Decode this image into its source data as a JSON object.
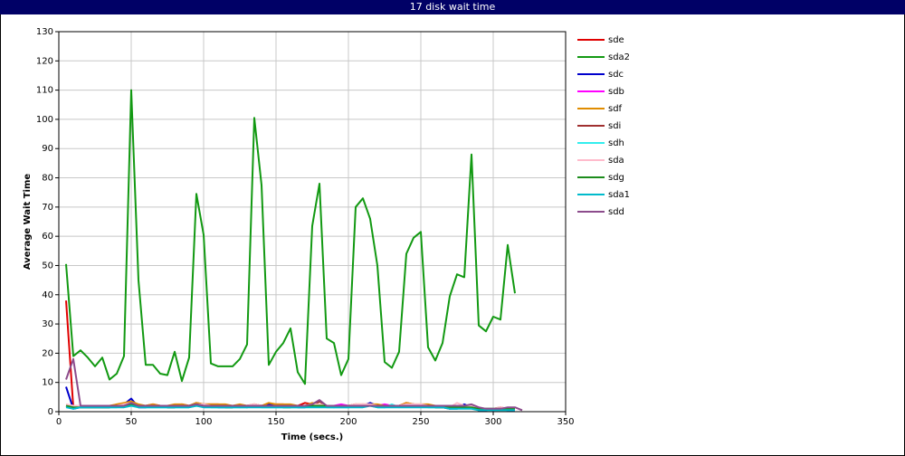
{
  "chart_data": {
    "type": "line",
    "title": "17 disk wait time",
    "x_label": "Time (secs.)",
    "y_label": "Average Wait Time",
    "xlim": [
      0,
      350
    ],
    "xticks": [
      0,
      50,
      100,
      150,
      200,
      250,
      300,
      350
    ],
    "ylim": [
      0,
      130
    ],
    "yticks": [
      0,
      10,
      20,
      30,
      40,
      50,
      60,
      70,
      80,
      90,
      100,
      110,
      120,
      130
    ],
    "grid": true,
    "legend": "right",
    "x": [
      5,
      10,
      15,
      20,
      25,
      30,
      35,
      40,
      45,
      50,
      55,
      60,
      65,
      70,
      75,
      80,
      85,
      90,
      95,
      100,
      105,
      110,
      115,
      120,
      125,
      130,
      135,
      140,
      145,
      150,
      155,
      160,
      165,
      170,
      175,
      180,
      185,
      190,
      195,
      200,
      205,
      210,
      215,
      220,
      225,
      230,
      235,
      240,
      245,
      250,
      255,
      260,
      265,
      270,
      275,
      280,
      285,
      290,
      295,
      300,
      305,
      310,
      315,
      320
    ],
    "series": [
      {
        "name": "sde",
        "color": "#e00000",
        "values": [
          38,
          1.5,
          2,
          2,
          2,
          1.5,
          1.5,
          2,
          2.5,
          3.5,
          2,
          2,
          2.5,
          2,
          2,
          2,
          2.5,
          2,
          3,
          2.5,
          2.5,
          2.5,
          2,
          2,
          2,
          2,
          2.5,
          2,
          2,
          2.5,
          2.5,
          2,
          2,
          3,
          2.5,
          2,
          2,
          2,
          2,
          2,
          2.5,
          2,
          2.5,
          2,
          2,
          2,
          2,
          3,
          2.5,
          2,
          2,
          2,
          1.5,
          1,
          1.5,
          2,
          1.5,
          0.5,
          0.5,
          1,
          1.5,
          1,
          1,
          null
        ]
      },
      {
        "name": "sda2",
        "color": "#129912",
        "values": [
          50.5,
          19,
          21,
          18.5,
          15.5,
          18.5,
          11,
          13,
          19,
          110,
          45,
          16,
          16,
          13,
          12.5,
          20.5,
          10.5,
          18.5,
          74.5,
          60.5,
          16.5,
          15.5,
          15.5,
          15.5,
          18,
          23,
          100.5,
          77.5,
          16,
          20.5,
          23.5,
          28.5,
          13.5,
          9.5,
          63.5,
          78,
          25,
          23.5,
          12.5,
          18,
          70,
          73,
          66,
          50,
          17,
          15,
          20.5,
          54,
          59.5,
          61.5,
          22,
          17.5,
          23.5,
          39.5,
          47,
          46,
          88,
          29.5,
          27.5,
          32.5,
          31.5,
          57,
          40.5,
          null
        ]
      },
      {
        "name": "sdc",
        "color": "#0000cc",
        "values": [
          8.5,
          1,
          1.5,
          1.5,
          1.5,
          1.5,
          1.5,
          2,
          2.5,
          4.5,
          1.5,
          1.5,
          2,
          2,
          1.5,
          1.5,
          2,
          2,
          2.5,
          2,
          2,
          1.5,
          1.5,
          1.5,
          2,
          1.5,
          2,
          2,
          2.5,
          2,
          1.5,
          2,
          1.5,
          1.5,
          2.5,
          2,
          2,
          1.5,
          2,
          1.5,
          2,
          2,
          3,
          2,
          1.5,
          2,
          2,
          2,
          2.5,
          2,
          2,
          1.5,
          1.5,
          1,
          1,
          2.5,
          1.5,
          0.5,
          0.5,
          1,
          1,
          0.5,
          0.5,
          null
        ]
      },
      {
        "name": "sdb",
        "color": "#ff00ff",
        "values": [
          2,
          1.5,
          1.5,
          2,
          1.5,
          2,
          1.5,
          2,
          2,
          2.5,
          2,
          1.5,
          2,
          2,
          1.5,
          2,
          2,
          2,
          2.5,
          2,
          2,
          2,
          1.5,
          2,
          1.5,
          2,
          2,
          2,
          2,
          2,
          2,
          2,
          2,
          2,
          2,
          2,
          2,
          2,
          2.5,
          2,
          2,
          2.5,
          2,
          2,
          2.5,
          2,
          2,
          2.5,
          2,
          2,
          2,
          2,
          1.5,
          1.5,
          1.5,
          2,
          1.5,
          1,
          1,
          0.5,
          1,
          1,
          0.5,
          null
        ]
      },
      {
        "name": "sdf",
        "color": "#e08c00",
        "values": [
          2,
          2,
          2,
          2,
          1.5,
          2,
          2,
          2.5,
          3,
          3.5,
          2.5,
          2,
          2.5,
          2,
          2,
          2.5,
          2.5,
          2,
          3,
          2.5,
          2.5,
          2.5,
          2.5,
          2,
          2.5,
          2,
          2.5,
          2,
          3,
          2.5,
          2.5,
          2.5,
          2,
          2,
          3,
          2.5,
          2,
          2,
          2,
          2,
          2.5,
          2.5,
          2.5,
          2.5,
          2,
          2,
          2,
          3,
          2.5,
          2.5,
          2.5,
          2,
          1.5,
          1.5,
          2,
          1.5,
          2,
          1,
          1,
          1,
          1,
          1,
          1,
          null
        ]
      },
      {
        "name": "sdi",
        "color": "#a03030",
        "values": [
          2,
          1.5,
          2,
          1.5,
          1.5,
          1.5,
          1.5,
          2,
          2,
          3,
          2,
          2,
          2,
          2,
          2,
          2,
          2,
          2,
          2.5,
          2,
          2,
          2,
          2,
          2,
          2,
          2,
          2,
          2,
          2,
          2,
          2,
          2,
          2,
          2,
          2,
          3.5,
          2,
          2,
          2,
          2,
          2,
          2,
          2,
          2,
          2,
          2,
          2,
          2.5,
          2,
          2,
          2,
          2,
          2,
          1.5,
          1.5,
          2,
          1.5,
          1,
          1,
          1,
          1,
          1,
          1,
          null
        ]
      },
      {
        "name": "sdh",
        "color": "#33eeee",
        "values": [
          2,
          1.5,
          1.5,
          1.5,
          1.5,
          1.5,
          1.5,
          1.5,
          2,
          2,
          2,
          1.5,
          1.5,
          1.5,
          1.5,
          1.5,
          1.5,
          1.5,
          2,
          2,
          1.5,
          1.5,
          1.5,
          1.5,
          1.5,
          1.5,
          2,
          1.5,
          1.5,
          1.5,
          1.5,
          1.5,
          1.5,
          1.5,
          2,
          2,
          1.5,
          1.5,
          1.5,
          1.5,
          2,
          2,
          2,
          1.5,
          1.5,
          2.5,
          1.5,
          2,
          2,
          2,
          1.5,
          1.5,
          1.5,
          1,
          1,
          1.5,
          1.5,
          1,
          1,
          1,
          1,
          1,
          1,
          null
        ]
      },
      {
        "name": "sda",
        "color": "#ffbbcc",
        "values": [
          2.5,
          2,
          2,
          2,
          2,
          2,
          2,
          2,
          2.5,
          3,
          2,
          2,
          2,
          2,
          2,
          2,
          2,
          2,
          2.5,
          2.5,
          2,
          2,
          2,
          2,
          2,
          2,
          2.5,
          2,
          2,
          2,
          2,
          2,
          2,
          2,
          2.5,
          2.5,
          2,
          2,
          2,
          2,
          2.5,
          2.5,
          2.5,
          2,
          2,
          2,
          2,
          2.5,
          2.5,
          2.5,
          2,
          2,
          2,
          1.5,
          3,
          2,
          2,
          1.5,
          1,
          1,
          1.5,
          1,
          1,
          null
        ]
      },
      {
        "name": "sdg",
        "color": "#1c8c1c",
        "values": [
          2,
          1.5,
          1.5,
          1.5,
          1.5,
          1.5,
          1.5,
          2,
          2,
          2.5,
          2,
          1.5,
          2,
          2,
          1.5,
          1.5,
          2,
          2,
          2.5,
          2,
          2,
          2,
          1.5,
          1.5,
          2,
          1.5,
          2,
          2,
          2,
          2,
          1.5,
          1.5,
          2,
          2,
          2,
          2,
          2,
          2,
          2,
          1.5,
          2,
          2,
          2,
          2,
          2,
          2,
          2,
          2,
          2,
          2,
          2,
          1.5,
          1.5,
          1.5,
          1.5,
          1.5,
          1.5,
          1,
          1,
          1,
          1,
          1,
          1,
          null
        ]
      },
      {
        "name": "sda1",
        "color": "#00bbcc",
        "values": [
          1.5,
          1,
          1.5,
          1.5,
          1.5,
          1.5,
          1.5,
          1.5,
          1.5,
          2,
          1.5,
          1.5,
          1.5,
          1.5,
          1.5,
          1.5,
          1.5,
          1.5,
          2,
          1.5,
          1.5,
          1.5,
          1.5,
          1.5,
          1.5,
          1.5,
          1.5,
          1.5,
          1.5,
          1.5,
          1.5,
          1.5,
          1.5,
          1.5,
          1.5,
          1.5,
          1.5,
          1.5,
          1.5,
          1.5,
          1.5,
          1.5,
          2,
          1.5,
          1.5,
          1.5,
          1.5,
          1.5,
          1.5,
          1.5,
          1.5,
          1.5,
          1.5,
          1,
          1,
          1,
          1,
          0.5,
          0.5,
          0.5,
          0.5,
          0.5,
          0.5,
          null
        ]
      },
      {
        "name": "sdd",
        "color": "#8c4c8c",
        "values": [
          11,
          18,
          2,
          2,
          2,
          2,
          2,
          2,
          2,
          3,
          2,
          2,
          2,
          2,
          2,
          2,
          2,
          2,
          2.5,
          2,
          2,
          2,
          2,
          2,
          2,
          2,
          2,
          2,
          2,
          2,
          2,
          2,
          2,
          2,
          2.5,
          4,
          2,
          2,
          2,
          2,
          2,
          2,
          2,
          2,
          2,
          2,
          2,
          2,
          2,
          2,
          2,
          2,
          2,
          2,
          2,
          2,
          2.5,
          1.5,
          1,
          1,
          1,
          1.5,
          1.5,
          0.5
        ]
      }
    ]
  }
}
